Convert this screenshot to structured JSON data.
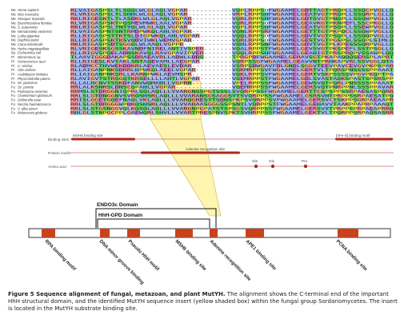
{
  "species": [
    {
      "group": "Me",
      "name": "Homo sapiens"
    },
    {
      "group": "Me",
      "name": "Mus musculus"
    },
    {
      "group": "Me",
      "name": "Xenopus tropicalis"
    },
    {
      "group": "Me",
      "name": "Branchiostoma floridae"
    },
    {
      "group": "Me",
      "name": "S. purpuratus"
    },
    {
      "group": "Me",
      "name": "Nematostella vectensis"
    },
    {
      "group": "Me",
      "name": "Lottia gigantea"
    },
    {
      "group": "Me",
      "name": "Daphnia pulex"
    },
    {
      "group": "Me",
      "name": "Ciona intestinalis"
    },
    {
      "group": "Me",
      "name": "Hydra magnipapillata"
    },
    {
      "group": "Ba",
      "name": "Escherichia coli"
    },
    {
      "group": "Pl",
      "name": "Micromonas sp."
    },
    {
      "group": "Pl",
      "name": "Ostreococcus tauri"
    },
    {
      "group": "Pl",
      "name": "C. reinhar."
    },
    {
      "group": "Pl",
      "name": "Vitis vinifera"
    },
    {
      "group": "Pl",
      "name": "Arabidopsis thaliana"
    },
    {
      "group": "Pl",
      "name": "Physcomitrella patens"
    },
    {
      "group": "Fu",
      "name": "Sz. japonicus"
    },
    {
      "group": "Fu",
      "name": "Sz. pombe"
    },
    {
      "group": "Fu",
      "name": "Podospora anserina"
    },
    {
      "group": "Fu",
      "name": "Chaetomium globosum"
    },
    {
      "group": "Fu",
      "name": "Gibberella zeae"
    },
    {
      "group": "Fu",
      "name": "Nectria haematococca"
    },
    {
      "group": "Fu",
      "name": "V. albo-atrum"
    },
    {
      "group": "Fu",
      "name": "Malassezia globosa"
    }
  ],
  "sequences": [
    "RLVAIGASPSLTLSQQLWLGLAQLVGPAR-----------VQPLRPPSOFWGAAMELGDTTAGTPRQPLLSSQCPVGLLQ",
    "RLVRIGASPSLTLSHHLWLGLAQLVGPAR-----------VRPLRPPSHFWGAAMELGEATVGTPRQPLLSSQRPLGLLQ",
    "RKLRIGESKTLTLASDKLWLGLAQLVGPAR----------VQRLRPPSHFWGAAMELGDTSVGTPNQPLLSSQWPVGLLQ",
    "RLVRIGASPSKTPQSMEVMWKLAALVGPAR----------VQRLRPPSOFWGAAMELGEAVKGTPKNPEFLSSCPKGLLQ",
    "RKLRIGASPSLTNTYQLWLGLAQLVGPAR-----------VQPLRPPSHFWGAAMELGEATVGTPSQPLLSSEWPVGLLQ",
    "RLVAIGASPNTSNTRMDPWKQLAHLVGPAR----------VQNLRPPSRFWGAAMELGETTTGTPKPQCLSSQWPVGLLQ",
    "RLLRIGASPSTTKTSLDIGPWKQLAHLVGPAR--------VQQLRPPSOFWGAAMELGDVTVGTPSQPLLSSQQPVGLLQ",
    "RLLRIGASPSKTKSVQDVIWKLWEMVGPAR----------VQRLRPPSOFWGAAMELGESTVGTPGSPSLSSQPLSIMLQ",
    "RKLRIGASPSDTSGGQLWLAAQLVGPPR------------VQHLRPPSNFWGAAMELGDVTVGTPLKPESSSQRPVGLLQ",
    "RLVRIGESKSGSSKAVNDFNIRELANTIVSPER-------VQALRPPSTFWGAAMELGEVSVGTPKSPEFLSSTPSGLLQ",
    "RLLRIGVSPQELADNSKAVQLRAVGPAVIPVER-------VQQLRPPSHFWGAAMELGEAHIGTPRSPRQPVSSAWPLQQ",
    "TLAAVIGGGDAKAPSSDRAEAVRLLADWLLDDS-------TPRGPDFWGAAMELGERAVSGTPKAPAQQQSERSPLAPRT",
    "RLLRIGESLKVTAKLSNTAQEVAMLLAEGPAR--------VQRPSSGFWGAAMELGEAVVNTPRHKAPVRLSSVGGLQTA",
    "RLADMCCTHVWEKDDKRLAEVAESLEVDAR----------VSRPSDWGAVFDLGNDLSGGVTEEVPAVCEVGVPKPSPAR",
    "RLLAIGANPNKSDRRLHPWKQLAEELVGPAR---------VQKMRPPSVFWGAAMELGERTVLTPQRSPNSSSSPPAAAT",
    "RLIAIGANPNKSRLLKARNPWKLAEVMSPR----------VQKLRPPSVFWGAAMELGERTVSKPSSSSVPGVPKQPTPA",
    "RLAVIGVTSTRSGQTKRSELLLLAHTLVGPAR--------VQEMRPPSTFWGAAMELGDLSVASTAQKSPASTSPSRSPP",
    "RLLALHCNVTSSKDFANVWQMAHLLVGPRN----------VPELRPPSSFWGAAMELGEWSVQTPQRLPNSSSSPPAAAT",
    "RRLALKSNRSLDNSCQPAHLLVGPAR--------------VQEMRPPSSFWGAAMELGERSVQTPNRPPNLSSSPPAVAR",
    "RRMSLSTDRGGNIQPRLSQLAQLLLVVARGNSSPGTSSSLSVQRPPSSFWGAAMELGERTTCQPSPPSSRPAESASPQRR",
    "RRLSLGTDNGGNVSVRQSHSRLAQLLLVVARANSGSAGGSYTSVQRPPSSFWGAAMELGSRSVHTPRPPSSRPAESATPQ",
    "RRISLGGETGQEFNAQLVKLAQLLLVVARQGRESTTSDNSPKPSVQRPPSVFWGAAMELGERSVCTSKPPSGRPAEAAPR",
    "RRLSLGTDRGGGWPDKQSHSRLAQLLLVVARAASGGGSSPSNTLVQRPPSTFWGAAMELGEHAVVTAAKPPAPRPAAAQT",
    "RRLSLSTGSNGGVQLKQSQLAQLLLVVARGNPGPATSTSPSGSVQRPPSSFWGAAMELGERSVYTPRPPSPRPAEAPRRQ",
    "RHLGLSTNPGCPPLGAEWQRLSHVLLVVARTPRESPNVSPKTSVHRPPSSFWGAAMELGEKTVLTPQRPPSRPAQSASRR"
  ],
  "site_labels": {
    "msh6": "MSH6 binding site",
    "fes": "[4Fe-S] binding motif",
    "binding_row": "Binding sites",
    "adenine": "Adenine recognition site",
    "motifs_row": "Protein motifs",
    "amino_row": "Amino acid",
    "gln": "Gln",
    "glu": "Glu",
    "pro": "Pro"
  },
  "domains": {
    "endo": "ENDO3c Domain",
    "hhh": "HhH-GPD Domain"
  },
  "map_labels": [
    "RPA binding motif",
    "DNA minor groove binding",
    "Pseudo HhH motif",
    "MSH6 binding site",
    "Adenine recognition site",
    "APE1 binding site",
    "PCNA binding site"
  ],
  "caption": {
    "label": "Figure 5 Sequence alignment of fungal, metazoan, and plant MutYH.",
    "text": " The alignment shows the C-terminal end of the important HhH structural domain, and the identified MutYH sequence insert (yellow shaded box) within the fungal group Sordariomycetes. The insert is located in the MutYH substrate binding site."
  },
  "colors": {
    "accent_red": "#b0281c",
    "insert_yellow": "#fff4b0",
    "block_orange": "#c8431c"
  }
}
